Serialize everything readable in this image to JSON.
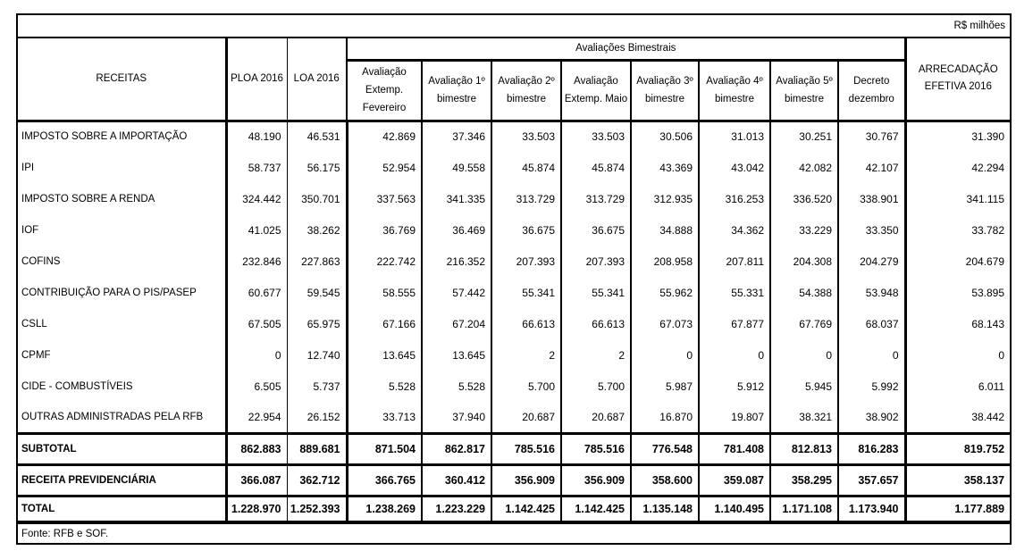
{
  "meta": {
    "unit_label": "R$ milhões",
    "source": "Fonte: RFB e SOF.",
    "colors": {
      "border": "#000000",
      "background": "#ffffff",
      "text": "#000000"
    }
  },
  "table": {
    "col_receitas": "RECEITAS",
    "col_ploa": "PLOA 2016",
    "col_loa": "LOA 2016",
    "group_header": "Avaliações Bimestrais",
    "col_arrecadacao": "ARRECADAÇÃO EFETIVA 2016",
    "bimestral_columns": [
      "Avaliação Extemp. Fevereiro",
      "Avaliação 1º bimestre",
      "Avaliação 2º bimestre",
      "Avaliação Extemp. Maio",
      "Avaliação 3º bimestre",
      "Avaliação 4º bimestre",
      "Avaliação 5º bimestre",
      "Decreto dezembro"
    ],
    "rows": [
      {
        "label": "IMPOSTO SOBRE A IMPORTAÇÃO",
        "bold": false,
        "values": [
          "48.190",
          "46.531",
          "42.869",
          "37.346",
          "33.503",
          "33.503",
          "30.506",
          "31.013",
          "30.251",
          "30.767",
          "31.390"
        ]
      },
      {
        "label": "IPI",
        "bold": false,
        "values": [
          "58.737",
          "56.175",
          "52.954",
          "49.558",
          "45.874",
          "45.874",
          "43.369",
          "43.042",
          "42.082",
          "42.107",
          "42.294"
        ]
      },
      {
        "label": "IMPOSTO SOBRE A RENDA",
        "bold": false,
        "values": [
          "324.442",
          "350.701",
          "337.563",
          "341.335",
          "313.729",
          "313.729",
          "312.935",
          "316.253",
          "336.520",
          "338.901",
          "341.115"
        ]
      },
      {
        "label": "IOF",
        "bold": false,
        "values": [
          "41.025",
          "38.262",
          "36.769",
          "36.469",
          "36.675",
          "36.675",
          "34.888",
          "34.362",
          "33.229",
          "33.350",
          "33.782"
        ]
      },
      {
        "label": "COFINS",
        "bold": false,
        "values": [
          "232.846",
          "227.863",
          "222.742",
          "216.352",
          "207.393",
          "207.393",
          "208.958",
          "207.811",
          "204.308",
          "204.279",
          "204.679"
        ]
      },
      {
        "label": "CONTRIBUIÇÃO PARA O PIS/PASEP",
        "bold": false,
        "values": [
          "60.677",
          "59.545",
          "58.555",
          "57.442",
          "55.341",
          "55.341",
          "55.962",
          "55.331",
          "54.388",
          "53.948",
          "53.895"
        ]
      },
      {
        "label": "CSLL",
        "bold": false,
        "values": [
          "67.505",
          "65.975",
          "67.166",
          "67.204",
          "66.613",
          "66.613",
          "67.073",
          "67.877",
          "67.769",
          "68.037",
          "68.143"
        ]
      },
      {
        "label": "CPMF",
        "bold": false,
        "values": [
          "0",
          "12.740",
          "13.645",
          "13.645",
          "2",
          "2",
          "0",
          "0",
          "0",
          "0",
          "0"
        ]
      },
      {
        "label": "CIDE - COMBUSTÍVEIS",
        "bold": false,
        "values": [
          "6.505",
          "5.737",
          "5.528",
          "5.528",
          "5.700",
          "5.700",
          "5.987",
          "5.912",
          "5.945",
          "5.992",
          "6.011"
        ]
      },
      {
        "label": "OUTRAS ADMINISTRADAS PELA RFB",
        "bold": false,
        "values": [
          "22.954",
          "26.152",
          "33.713",
          "37.940",
          "20.687",
          "20.687",
          "16.870",
          "19.807",
          "38.321",
          "38.902",
          "38.442"
        ]
      },
      {
        "label": "SUBTOTAL",
        "bold": true,
        "values": [
          "862.883",
          "889.681",
          "871.504",
          "862.817",
          "785.516",
          "785.516",
          "776.548",
          "781.408",
          "812.813",
          "816.283",
          "819.752"
        ]
      },
      {
        "label": "RECEITA PREVIDENCIÁRIA",
        "bold": true,
        "values": [
          "366.087",
          "362.712",
          "366.765",
          "360.412",
          "356.909",
          "356.909",
          "358.600",
          "359.087",
          "358.295",
          "357.657",
          "358.137"
        ]
      },
      {
        "label": "TOTAL",
        "bold": true,
        "values": [
          "1.228.970",
          "1.252.393",
          "1.238.269",
          "1.223.229",
          "1.142.425",
          "1.142.425",
          "1.135.148",
          "1.140.495",
          "1.171.108",
          "1.173.940",
          "1.177.889"
        ]
      }
    ]
  }
}
